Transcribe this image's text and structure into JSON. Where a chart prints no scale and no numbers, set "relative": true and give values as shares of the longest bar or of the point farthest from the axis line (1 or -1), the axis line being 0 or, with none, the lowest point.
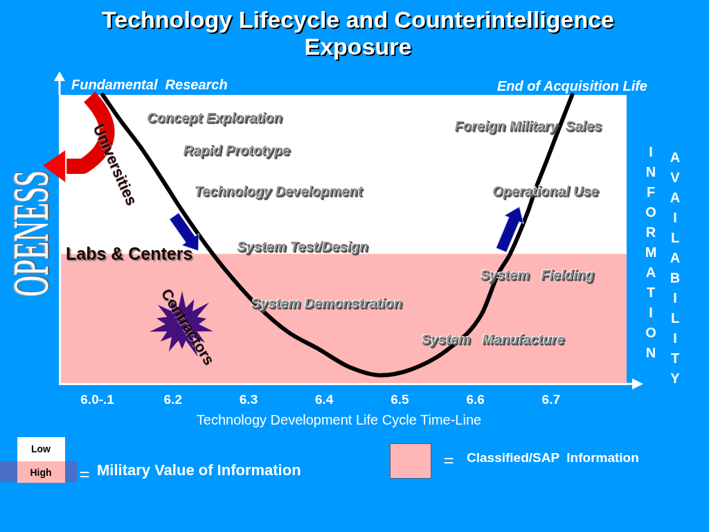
{
  "chart_data": {
    "type": "line",
    "title": "Technology Lifecycle and Counterintelligence Exposure",
    "xlabel": "Technology Development Life Cycle Time-Line",
    "ylabel": "OPENESS",
    "x": [
      6.107,
      6.131,
      6.157,
      6.185,
      6.212,
      6.244,
      6.274,
      6.312,
      6.352,
      6.393,
      6.432,
      6.474,
      6.515,
      6.564,
      6.608,
      6.63,
      6.646,
      6.67,
      6.679,
      6.694,
      6.71,
      6.728
    ],
    "series": [
      {
        "color": "#000000",
        "values": [
          1.0,
          0.91,
          0.82,
          0.71,
          0.6,
          0.48,
          0.38,
          0.27,
          0.18,
          0.12,
          0.06,
          0.03,
          0.05,
          0.12,
          0.24,
          0.38,
          0.45,
          0.6,
          0.67,
          0.77,
          0.88,
          1.0
        ]
      }
    ],
    "relative": true,
    "xlim": [
      6.05,
      6.8
    ],
    "xticks": [
      {
        "value": 6.1,
        "label": "6.0-.1"
      },
      6.2,
      6.3,
      6.4,
      6.5,
      6.6,
      6.7
    ],
    "bands": [
      {
        "axis": "y",
        "from": 0,
        "to": 0.45,
        "color": "#ffb6b6"
      }
    ],
    "annotations": [
      "Fundamental  Research",
      "End of Acquisition Life",
      "Universities",
      "Labs & Centers",
      "Contractors",
      "INFORMATION",
      "AVAILABILITY",
      "Low",
      "High",
      "=",
      "Military Value of Information",
      "=",
      "Classified/SAP  Information",
      "Concept Exploration",
      "Rapid Prototype",
      "Technology Development",
      "System Test/Design",
      "System Demonstration",
      "System   Manufacture",
      "System   Fielding",
      "Operational Use",
      "Foreign Military  Sales"
    ],
    "grid": false,
    "legend": false,
    "marker": "none",
    "line_style": "solid"
  }
}
